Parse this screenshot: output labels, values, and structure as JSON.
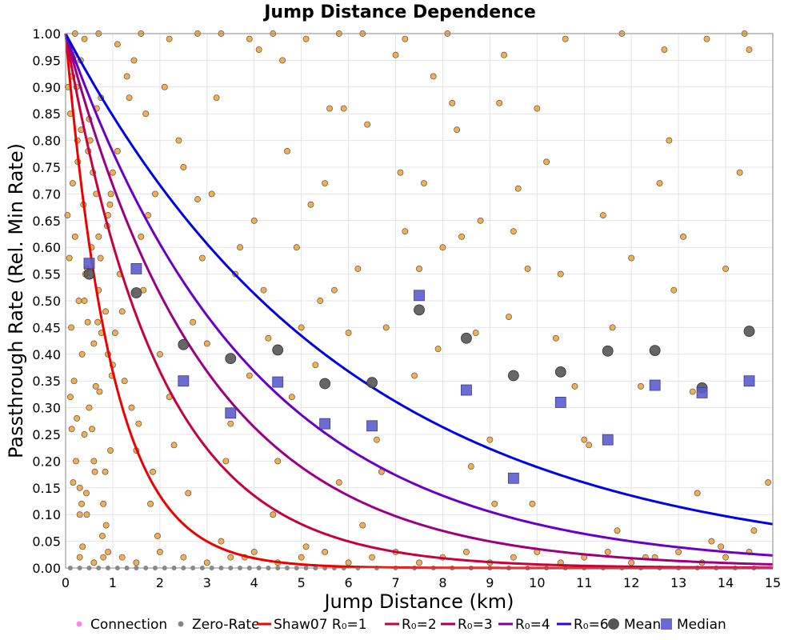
{
  "chart_data": {
    "type": "scatter",
    "title": "Jump Distance Dependence",
    "xlabel": "Jump Distance (km)",
    "ylabel": "Passthrough Rate (Rel. Min Rate)",
    "xlim": [
      0,
      15
    ],
    "ylim": [
      0,
      1.0
    ],
    "x_ticks": [
      "0",
      "1",
      "2",
      "3",
      "4",
      "5",
      "6",
      "7",
      "8",
      "9",
      "10",
      "11",
      "12",
      "13",
      "14",
      "15"
    ],
    "y_ticks": [
      "0.00",
      "0.05",
      "0.10",
      "0.15",
      "0.20",
      "0.25",
      "0.30",
      "0.35",
      "0.40",
      "0.45",
      "0.50",
      "0.55",
      "0.60",
      "0.65",
      "0.70",
      "0.75",
      "0.80",
      "0.85",
      "0.90",
      "0.95",
      "1.00"
    ],
    "grid": true,
    "legend_position": "bottom",
    "legend": [
      {
        "label": "Connection",
        "kind": "dot",
        "color": "#ff88ee"
      },
      {
        "label": "Zero-Rate",
        "kind": "dot",
        "color": "#888888"
      },
      {
        "label": "Shaw07 R₀=1",
        "kind": "line",
        "color": "#ff0000"
      },
      {
        "label": "R₀=2",
        "kind": "line",
        "color": "#c8003c"
      },
      {
        "label": "R₀=3",
        "kind": "line",
        "color": "#a00064"
      },
      {
        "label": "R₀=4",
        "kind": "line",
        "color": "#8000a0"
      },
      {
        "label": "R₀=6",
        "kind": "line",
        "color": "#3c00d0"
      },
      {
        "label": "Mean",
        "kind": "circle",
        "color": "#606060"
      },
      {
        "label": "Median",
        "kind": "square",
        "color": "#6a6ad4"
      }
    ],
    "curves": [
      {
        "name": "Shaw07 R₀=1",
        "r0": 1,
        "color": "#ee0000"
      },
      {
        "name": "R₀=2",
        "r0": 2,
        "color": "#c8003c"
      },
      {
        "name": "R₀=3",
        "r0": 3,
        "color": "#9c0080"
      },
      {
        "name": "R₀=4",
        "r0": 4,
        "color": "#6a00c8"
      },
      {
        "name": "R₀=6",
        "r0": 6,
        "color": "#0000ee"
      }
    ],
    "mean": {
      "x": [
        0.5,
        1.5,
        2.5,
        3.5,
        4.5,
        5.5,
        6.5,
        7.5,
        8.5,
        9.5,
        10.5,
        11.5,
        12.5,
        13.5,
        14.5
      ],
      "y": [
        0.55,
        0.515,
        0.418,
        0.392,
        0.408,
        0.345,
        0.347,
        0.483,
        0.43,
        0.36,
        0.367,
        0.406,
        0.407,
        0.337,
        0.443
      ]
    },
    "median": {
      "x": [
        0.5,
        1.5,
        2.5,
        3.5,
        4.5,
        5.5,
        6.5,
        7.5,
        8.5,
        9.5,
        10.5,
        11.5,
        12.5,
        13.5,
        14.5
      ],
      "y": [
        0.57,
        0.56,
        0.35,
        0.29,
        0.348,
        0.27,
        0.266,
        0.51,
        0.333,
        0.168,
        0.31,
        0.24,
        0.342,
        0.328,
        0.35
      ]
    },
    "connection_points": {
      "x": [
        0.05,
        0.1,
        0.12,
        0.15,
        0.18,
        0.2,
        0.22,
        0.25,
        0.28,
        0.3,
        0.32,
        0.35,
        0.38,
        0.4,
        0.42,
        0.45,
        0.48,
        0.5,
        0.55,
        0.6,
        0.62,
        0.65,
        0.7,
        0.72,
        0.75,
        0.8,
        0.85,
        0.9,
        0.95,
        1.0,
        0.08,
        0.14,
        0.24,
        0.33,
        0.44,
        0.58,
        0.68,
        0.78,
        0.88,
        0.98,
        0.06,
        0.16,
        0.26,
        0.36,
        0.46,
        0.56,
        0.66,
        0.76,
        0.86,
        0.96,
        0.1,
        0.2,
        0.3,
        0.4,
        0.5,
        0.6,
        0.7,
        0.8,
        0.9,
        1.0,
        0.04,
        0.13,
        0.23,
        0.34,
        0.47,
        0.52,
        0.64,
        0.74,
        0.84,
        0.94,
        1.1,
        1.2,
        1.3,
        1.4,
        1.5,
        1.6,
        1.7,
        1.8,
        1.9,
        2.0,
        1.15,
        1.35,
        1.55,
        1.75,
        1.95,
        1.25,
        1.45,
        1.65,
        1.85,
        1.05,
        2.1,
        2.3,
        2.5,
        2.7,
        2.9,
        3.1,
        3.3,
        3.5,
        3.7,
        3.9,
        2.2,
        2.4,
        2.6,
        2.8,
        3.0,
        3.2,
        3.4,
        3.6,
        3.8,
        4.0,
        4.1,
        4.3,
        4.5,
        4.7,
        4.9,
        5.1,
        5.3,
        5.5,
        5.7,
        5.9,
        4.2,
        4.4,
        4.6,
        4.8,
        5.0,
        5.2,
        5.4,
        5.6,
        5.8,
        6.0,
        6.2,
        6.4,
        6.6,
        6.8,
        7.0,
        7.2,
        7.4,
        7.6,
        7.8,
        8.0,
        6.3,
        6.7,
        7.1,
        7.5,
        7.9,
        8.2,
        8.4,
        8.6,
        8.8,
        9.0,
        9.2,
        9.4,
        9.6,
        9.8,
        10.0,
        8.3,
        8.7,
        9.1,
        9.5,
        9.9,
        10.2,
        10.5,
        10.8,
        11.1,
        11.4,
        11.7,
        12.0,
        12.3,
        12.6,
        12.9,
        10.4,
        11.0,
        11.6,
        12.2,
        12.8,
        13.1,
        13.4,
        13.7,
        14.0,
        14.3,
        14.6,
        14.9,
        13.3,
        13.9,
        14.5,
        0.3,
        0.6,
        0.9,
        1.2,
        1.5,
        2.0,
        2.5,
        3.0,
        3.5,
        4.0,
        4.5,
        5.0,
        5.5,
        6.0,
        6.5,
        7.0,
        7.5,
        8.0,
        8.5,
        9.0,
        9.5,
        10.0,
        10.5,
        11.0,
        11.5,
        12.0,
        12.5,
        13.0,
        13.5,
        14.0,
        14.5,
        0.2,
        0.4,
        0.7,
        1.1,
        1.6,
        2.2,
        2.8,
        3.3,
        3.9,
        4.4,
        5.1,
        5.8,
        6.3,
        7.2,
        8.1,
        9.3,
        10.6,
        11.8,
        12.7,
        13.6,
        14.4
      ],
      "y": [
        0.9,
        0.85,
        0.45,
        0.72,
        0.35,
        0.62,
        0.2,
        0.8,
        0.5,
        0.15,
        0.95,
        0.4,
        0.68,
        0.25,
        0.55,
        0.1,
        0.78,
        0.3,
        0.6,
        0.42,
        0.18,
        0.7,
        0.52,
        0.33,
        0.88,
        0.12,
        0.48,
        0.66,
        0.22,
        0.38,
        0.58,
        0.92,
        0.28,
        0.82,
        0.14,
        0.74,
        0.46,
        0.06,
        0.64,
        0.36,
        0.98,
        0.16,
        0.76,
        0.04,
        0.56,
        0.26,
        0.86,
        0.44,
        0.08,
        0.7,
        0.32,
        0.96,
        0.1,
        0.5,
        0.84,
        0.2,
        0.62,
        0.02,
        0.4,
        0.74,
        0.66,
        0.26,
        0.9,
        0.12,
        0.46,
        0.8,
        0.34,
        0.58,
        0.18,
        0.68,
        0.78,
        0.48,
        0.92,
        0.3,
        0.22,
        0.62,
        0.85,
        0.12,
        0.7,
        0.4,
        0.55,
        0.88,
        0.27,
        0.66,
        0.06,
        0.35,
        0.95,
        0.52,
        0.18,
        0.44,
        0.9,
        0.23,
        0.75,
        0.46,
        0.58,
        0.7,
        0.05,
        0.27,
        0.6,
        0.36,
        0.32,
        0.8,
        0.14,
        0.69,
        0.42,
        0.88,
        0.2,
        0.55,
        0.02,
        0.65,
        0.97,
        0.43,
        0.2,
        0.78,
        0.6,
        0.04,
        0.38,
        0.72,
        0.52,
        0.86,
        0.52,
        0.1,
        0.95,
        0.32,
        0.45,
        0.68,
        0.5,
        0.86,
        0.16,
        0.44,
        0.56,
        0.83,
        0.24,
        0.45,
        0.96,
        0.63,
        0.36,
        0.72,
        0.92,
        0.6,
        0.08,
        0.18,
        0.74,
        0.56,
        0.41,
        0.87,
        0.62,
        0.19,
        0.65,
        0.24,
        0.87,
        0.47,
        0.71,
        0.56,
        0.86,
        0.82,
        0.44,
        0.12,
        0.63,
        0.12,
        0.76,
        0.55,
        0.34,
        0.23,
        0.66,
        0.07,
        0.58,
        0.02,
        0.72,
        0.52,
        0.43,
        0.24,
        0.45,
        0.34,
        0.8,
        0.62,
        0.14,
        0.05,
        0.56,
        0.74,
        0.07,
        0.16,
        0.33,
        0.04,
        0.97,
        0.02,
        0.01,
        0.03,
        0.02,
        0.01,
        0.03,
        0.02,
        0.01,
        0.02,
        0.03,
        0.01,
        0.02,
        0.03,
        0.01,
        0.02,
        0.03,
        0.01,
        0.02,
        0.03,
        0.01,
        0.02,
        0.03,
        0.01,
        0.02,
        0.03,
        0.01,
        0.02,
        0.03,
        0.01,
        0.02,
        0.03,
        1.0,
        0.99,
        1.0,
        0.98,
        1.0,
        0.99,
        1.0,
        1.0,
        0.99,
        1.0,
        0.99,
        1.0,
        1.0,
        0.99,
        1.0,
        0.96,
        0.99,
        1.0,
        0.97,
        0.99,
        1.0
      ]
    },
    "zero_rate_points": {
      "x": [
        0.1,
        0.3,
        0.5,
        0.7,
        0.9,
        1.1,
        1.3,
        1.5,
        1.7,
        1.9,
        2.1,
        2.3,
        2.5,
        2.7,
        2.9,
        3.1,
        3.3,
        3.5,
        3.7,
        3.9,
        4.1,
        4.3,
        4.5,
        4.7,
        4.9,
        5.1,
        5.3,
        5.5,
        5.7,
        5.9,
        6.2,
        6.6,
        7.0,
        7.4,
        7.8,
        8.2,
        8.6,
        9.0,
        9.4,
        9.8,
        10.2,
        10.6,
        11.0,
        11.4,
        11.8,
        12.2,
        12.6,
        13.0,
        13.4,
        13.8,
        14.2,
        14.6
      ],
      "y": [
        0,
        0,
        0,
        0,
        0,
        0,
        0,
        0,
        0,
        0,
        0,
        0,
        0,
        0,
        0,
        0,
        0,
        0,
        0,
        0,
        0,
        0,
        0,
        0,
        0,
        0,
        0,
        0,
        0,
        0,
        0,
        0,
        0,
        0,
        0,
        0,
        0,
        0,
        0,
        0,
        0,
        0,
        0,
        0,
        0,
        0,
        0,
        0,
        0,
        0,
        0,
        0
      ]
    }
  }
}
